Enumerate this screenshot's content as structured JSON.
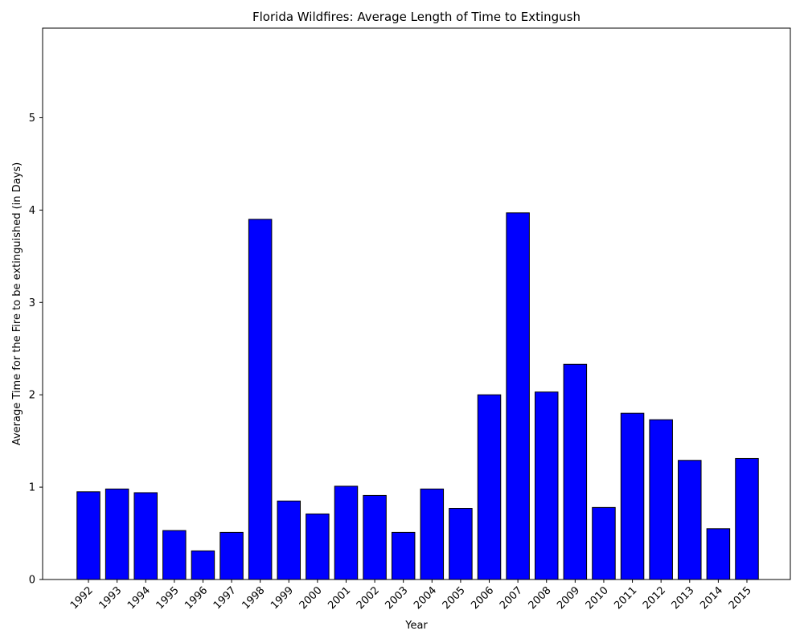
{
  "chart_data": {
    "type": "bar",
    "title": "Florida Wildfires: Average Length of Time to Extingush",
    "xlabel": "Year",
    "ylabel": "Average Time for the Fire to be extinguished (in Days)",
    "categories": [
      "1992",
      "1993",
      "1994",
      "1995",
      "1996",
      "1997",
      "1998",
      "1999",
      "2000",
      "2001",
      "2002",
      "2003",
      "2004",
      "2005",
      "2006",
      "2007",
      "2008",
      "2009",
      "2010",
      "2011",
      "2012",
      "2013",
      "2014",
      "2015"
    ],
    "values": [
      0.95,
      0.98,
      0.94,
      0.53,
      0.31,
      0.51,
      3.9,
      0.85,
      0.71,
      1.01,
      0.91,
      0.51,
      0.98,
      0.77,
      2.0,
      3.97,
      2.03,
      2.33,
      0.78,
      1.8,
      1.73,
      1.29,
      0.55,
      1.31
    ],
    "ylim": [
      0,
      5.97
    ],
    "yticks": [
      0,
      1,
      2,
      3,
      4,
      5
    ],
    "grid": false,
    "colors": {
      "bar_fill": "#0000ff",
      "bar_edge": "#000000",
      "axis": "#000000",
      "background": "#ffffff"
    }
  }
}
